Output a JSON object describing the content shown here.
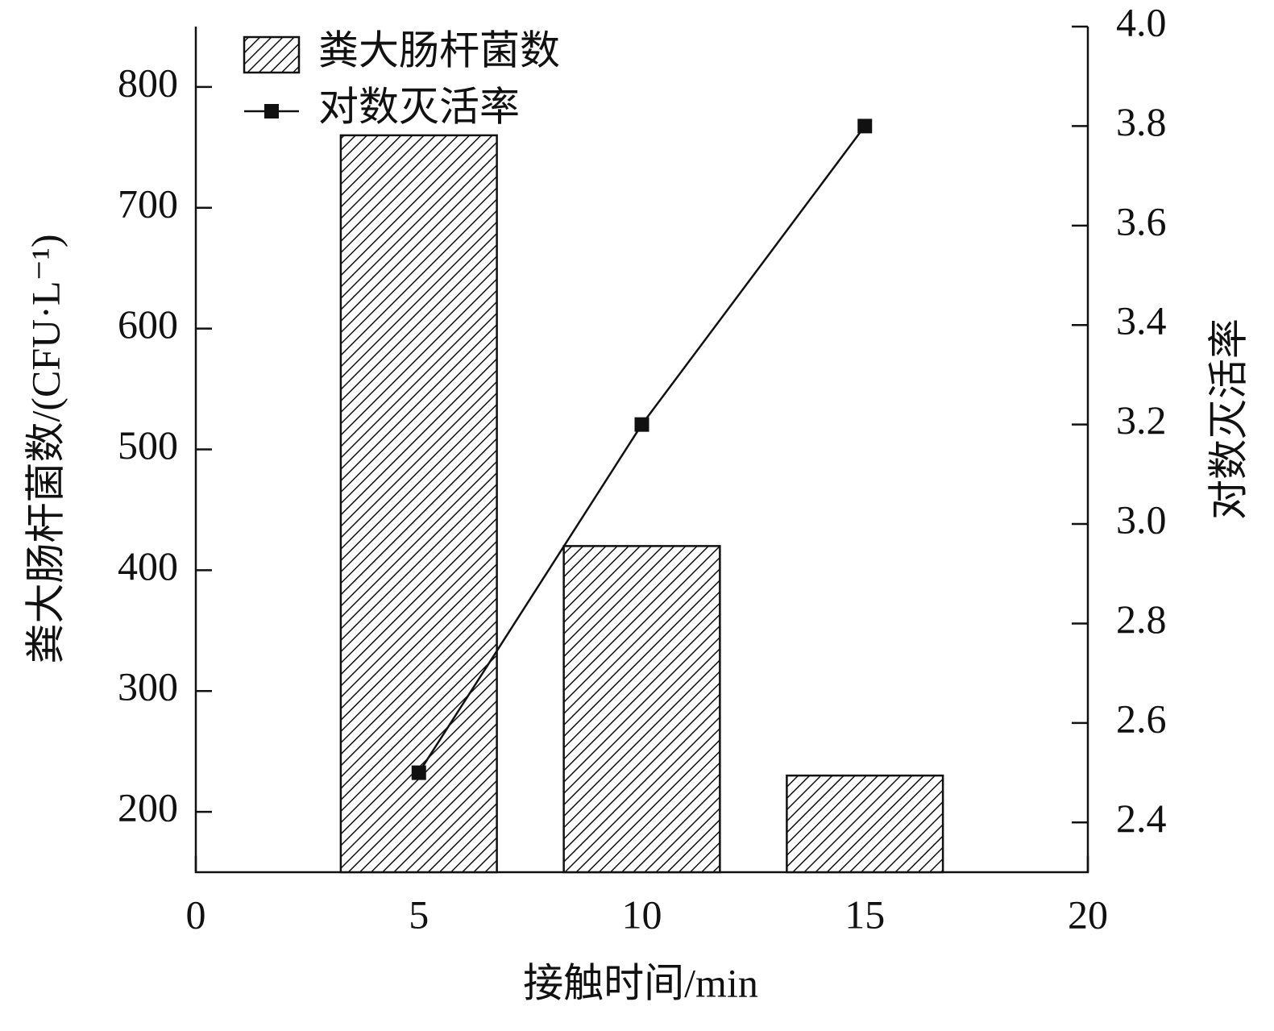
{
  "chart_data": {
    "type": "bar_line",
    "x_label": "接触时间/min",
    "y_label": "粪大肠杆菌数/(CFU·L⁻¹)",
    "y2_label": "对数灭活率",
    "x": [
      5,
      10,
      15
    ],
    "xlim": [
      0,
      20
    ],
    "xticks": [
      0,
      5,
      10,
      15,
      20
    ],
    "ylim": [
      150,
      850
    ],
    "yticks": [
      200,
      300,
      400,
      500,
      600,
      700,
      800
    ],
    "y2lim": [
      2.3,
      4.0
    ],
    "y2ticks": [
      2.4,
      2.6,
      2.8,
      {
        "value": 3.0,
        "label": "3.0"
      },
      3.2,
      3.4,
      3.6,
      3.8,
      {
        "value": 4.0,
        "label": "4.0"
      }
    ],
    "legend": "upper left",
    "series": [
      {
        "name": "粪大肠杆菌数",
        "type": "bar",
        "color": "#111111",
        "axis": "y",
        "values": [
          760,
          420,
          230
        ]
      },
      {
        "name": "对数灭活率",
        "type": "line",
        "color": "#111111",
        "axis": "y2",
        "values": [
          2.5,
          3.2,
          3.8
        ]
      }
    ]
  }
}
